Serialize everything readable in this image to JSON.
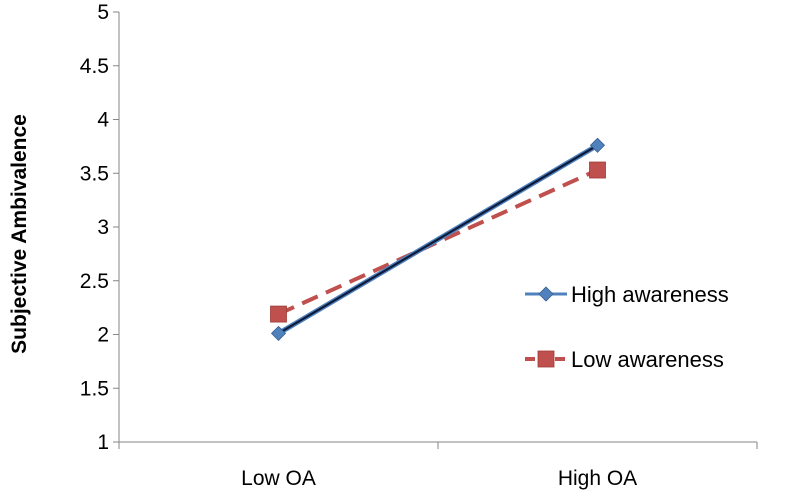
{
  "chart_data": {
    "type": "line",
    "title": "",
    "xlabel": "",
    "ylabel": "Subjective Ambivalence",
    "categories": [
      "Low OA",
      "High OA"
    ],
    "ylim": [
      1,
      5
    ],
    "yticks": [
      "1",
      "1.5",
      "2",
      "2.5",
      "3",
      "3.5",
      "4",
      "4.5",
      "5"
    ],
    "grid": false,
    "legend_position": "right",
    "series": [
      {
        "name": "High awareness",
        "values": [
          2.01,
          3.76
        ],
        "color": "#4F81BD",
        "line_color": "#0D1A3A",
        "dash": "solid",
        "marker": "diamond"
      },
      {
        "name": "Low awareness",
        "values": [
          2.19,
          3.53
        ],
        "color": "#C0504D",
        "line_color": "#C0504D",
        "dash": "dashed",
        "marker": "square"
      }
    ]
  }
}
